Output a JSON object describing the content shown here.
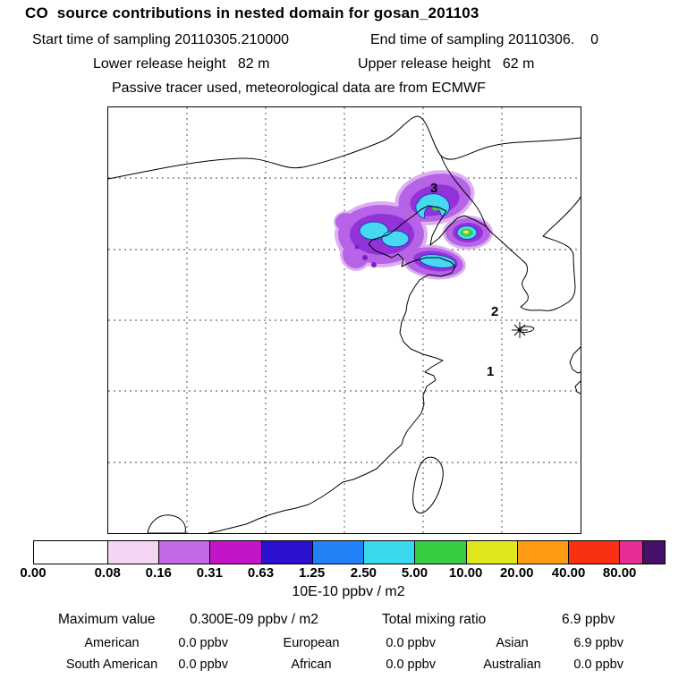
{
  "header": {
    "title": "CO  source contributions in nested domain for gosan_201103",
    "sampling_line": {
      "start": "Start time of sampling 20110305.210000",
      "end": "End time of sampling 20110306.    0"
    },
    "release_line": {
      "lower": "Lower release height   82 m",
      "upper": "Upper release height   62 m"
    },
    "tracer_line": "Passive tracer used, meteorological data are from ECMWF"
  },
  "map": {
    "receptor_labels": [
      {
        "text": "3"
      },
      {
        "text": "2"
      },
      {
        "text": "1"
      }
    ],
    "station_marker": "asterisk-star"
  },
  "colorbar": {
    "units_label": "10E-10 ppbv / m2",
    "ticks": [
      "0.00",
      "0.08",
      "0.16",
      "0.31",
      "0.63",
      "1.25",
      "2.50",
      "5.00",
      "10.00",
      "20.00",
      "40.00",
      "80.00"
    ],
    "tick_positions_pct": [
      0,
      11.8,
      19.9,
      28.0,
      36.1,
      44.2,
      52.4,
      60.5,
      68.6,
      76.7,
      84.9,
      93.0
    ],
    "segments": [
      {
        "color": "#ffffff",
        "width_pct": 11.8
      },
      {
        "color": "#f4d5f4",
        "width_pct": 8.12
      },
      {
        "color": "#c168e2",
        "width_pct": 8.12
      },
      {
        "color": "#c414c8",
        "width_pct": 8.12
      },
      {
        "color": "#2a12d0",
        "width_pct": 8.12
      },
      {
        "color": "#2282f8",
        "width_pct": 8.12
      },
      {
        "color": "#3ad8ec",
        "width_pct": 8.12
      },
      {
        "color": "#38cc42",
        "width_pct": 8.12
      },
      {
        "color": "#dfe81e",
        "width_pct": 8.12
      },
      {
        "color": "#ff9c14",
        "width_pct": 8.12
      },
      {
        "color": "#f83014",
        "width_pct": 8.12
      },
      {
        "color": "#e62e96",
        "width_pct": 3.5
      },
      {
        "color": "#471068",
        "width_pct": 3.5
      }
    ]
  },
  "stats": {
    "maximum_label": "Maximum value",
    "maximum_value": "0.300E-09 ppbv / m2",
    "total_label": "Total mixing ratio",
    "total_value": "6.9 ppbv",
    "regions": [
      {
        "label": "American",
        "value": "0.0 ppbv"
      },
      {
        "label": "European",
        "value": "0.0 ppbv"
      },
      {
        "label": "Asian",
        "value": "6.9 ppbv"
      },
      {
        "label": "South American",
        "value": "0.0 ppbv"
      },
      {
        "label": "African",
        "value": "0.0 ppbv"
      },
      {
        "label": "Australian",
        "value": "0.0 ppbv"
      }
    ]
  },
  "chart_data": {
    "type": "heatmap",
    "title": "CO  source contributions in nested domain for gosan_201103",
    "subtitle_lines": [
      "Start time of sampling 20110305.210000",
      "End time of sampling 20110306.    0",
      "Lower release height   82 m",
      "Upper release height   62 m",
      "Passive tracer used, meteorological data are from ECMWF"
    ],
    "units": "10E-10 ppbv / m2",
    "color_levels": [
      0.0,
      0.08,
      0.16,
      0.31,
      0.63,
      1.25,
      2.5,
      5.0,
      10.0,
      20.0,
      40.0,
      80.0
    ],
    "maximum_value": "0.300E-09 ppbv / m2",
    "total_mixing_ratio": "6.9 ppbv",
    "region_contributions_ppbv": {
      "American": 0.0,
      "European": 0.0,
      "Asian": 6.9,
      "South American": 0.0,
      "African": 0.0,
      "Australian": 0.0
    },
    "receptor_labels": [
      "3",
      "2",
      "1"
    ],
    "legend_position": "bottom",
    "annotation": "Source-contribution plume over northeastern China / Bohai region; station asterisk marker southwest of Korea"
  }
}
